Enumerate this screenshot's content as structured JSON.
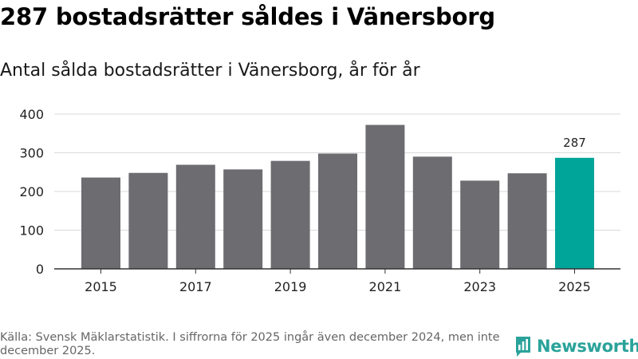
{
  "header": {
    "title": "287 bostadsrätter såldes i Vänersborg",
    "subtitle": "Antal sålda bostadsrätter i Vänersborg, år för år"
  },
  "footer": {
    "source": "Källa: Svensk Mäklarstatistik. I siffrorna för 2025 ingår även december 2024, men inte december 2025.",
    "brand": "Newsworthy",
    "brand_icon": "bar-chart-logo-icon"
  },
  "colors": {
    "bar": "#6d6c71",
    "highlight": "#00a59a",
    "grid": "#d9d9d9",
    "axis": "#333333",
    "brand": "#2aa39a"
  },
  "chart_data": {
    "type": "bar",
    "title": "Antal sålda bostadsrätter i Vänersborg, år för år",
    "xlabel": "",
    "ylabel": "",
    "categories": [
      "2015",
      "2016",
      "2017",
      "2018",
      "2019",
      "2020",
      "2021",
      "2022",
      "2023",
      "2024",
      "2025"
    ],
    "values": [
      236,
      248,
      269,
      257,
      279,
      298,
      372,
      290,
      228,
      247,
      287
    ],
    "x_tick_labels": [
      "2015",
      "2017",
      "2019",
      "2021",
      "2023",
      "2025"
    ],
    "y_ticks": [
      0,
      100,
      200,
      300,
      400
    ],
    "ylim": [
      0,
      400
    ],
    "grid": true,
    "highlight_category": "2025",
    "data_labels": [
      {
        "category": "2025",
        "text": "287"
      }
    ]
  }
}
